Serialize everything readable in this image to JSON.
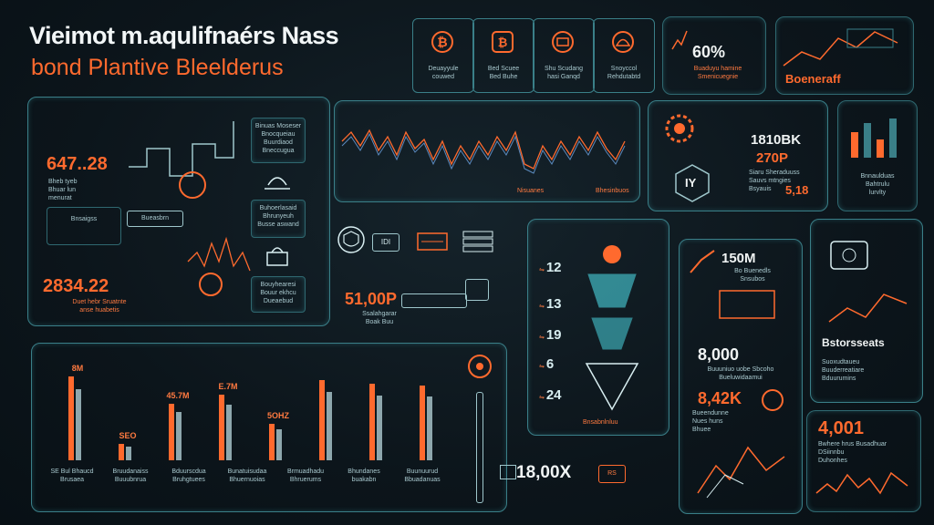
{
  "header": {
    "title_line1": "Vieimot m.aqulifnaérs Nass",
    "title_line2": "bond Plantive Bleelderus"
  },
  "top_tiles": [
    {
      "icon": "bitcoin-coin-icon",
      "caption": "Deuayyule\ncouwed"
    },
    {
      "icon": "bitcoin-square-icon",
      "caption": "Bed Scuee\nBed Buhe"
    },
    {
      "icon": "mining-rig-icon",
      "caption": "Shu Scudang\nhasi Ganqd"
    },
    {
      "icon": "dome-node-icon",
      "caption": "Snoyccol\nRehdutabtd"
    }
  ],
  "top_right_stat": {
    "value": "60%",
    "caption": "Buaduyu hamine\nSmenicuegnie"
  },
  "far_right_card": {
    "label": "Boeneraff"
  },
  "left_panel": {
    "stat1": "647..28",
    "stat1_caption": "Bheb tyeb\nBhuar lun\nmenurat",
    "stat2": "2834.22",
    "stat2_caption": "Duet hebr Sruatnte\nanse huabetis",
    "widgets": [
      {
        "caption": "Binuas Moseser\nBnocqueiau\nBuurdiaod\nBneccugua"
      },
      {
        "caption": "Buhoerlasaid\nBhrunyeuh\nBusse aswand"
      },
      {
        "caption": "Bouyhearesi\nBouur ekhcu\nDueaebud"
      }
    ],
    "tag": "Bnsaigss",
    "tag2": "Bueasbrn"
  },
  "center_chart": {
    "caption_left": "Nisuanes",
    "caption_right": "Bhesinbuos"
  },
  "right_top_panel": {
    "stat1": "1810BK",
    "stat2": "270P",
    "stat3": "5,18",
    "caption": "Siaru Sheraduuss\nSauvs mtngies\nBsyauis",
    "icon_label": "IY",
    "side_caption": "Bnnaulduas\nBahtrulu\nlurvlty"
  },
  "center_row": {
    "badge": "IDI",
    "stat": "51,00P",
    "stat_caption": "Ssalahgarar\nBoak Buu"
  },
  "funnel_panel": {
    "levels": [
      {
        "value": "12"
      },
      {
        "value": "13"
      },
      {
        "value": "19"
      },
      {
        "value": "6"
      },
      {
        "value": "24"
      }
    ],
    "footer": "Bnsabnlnluu"
  },
  "right_mid_panel": {
    "stat1": "150M",
    "stat1_caption": "Bo Buenedls\nSnsubos",
    "stat2": "8,000",
    "stat2_caption": "Buuuniuo uobe Sbcoho\nBueluwidaamui",
    "stat3": "8,42K",
    "stat3_caption": "Bueendunne\nNues huns\nBhuee"
  },
  "far_right_bottom": {
    "label": "Bstorsseats",
    "caption": "Suoxudtaueu\nBuuderreatiare\nBduurumins",
    "stat": "4,001",
    "stat_caption": "Bwhere hrus Busadhuar\nDSiinnbu\nDuhonhes"
  },
  "bar_panel": {
    "labels": [
      "8M",
      "SEO",
      "45.7M",
      "E.7M",
      "5OHZ",
      "",
      "",
      ""
    ],
    "footer_captions": [
      "SE Bul Bhaucd\nBrusaea",
      "Bruudanaiss\nBuuubnrua",
      "Bduurscdua\nBruhgtuees",
      "Bunatuisudaa\nBhuernuoias",
      "Brmuadhadu\nBhruerums",
      "Bhundanes\nbuakabn",
      "Buunuurud\nBbuadanuas"
    ]
  },
  "bottom_center": {
    "stat": "18,00X",
    "badge": "RS"
  },
  "colors": {
    "accent_orange": "#ff6a2e",
    "teal": "#3a7f88",
    "cyan_glow": "#4fe3ef"
  }
}
